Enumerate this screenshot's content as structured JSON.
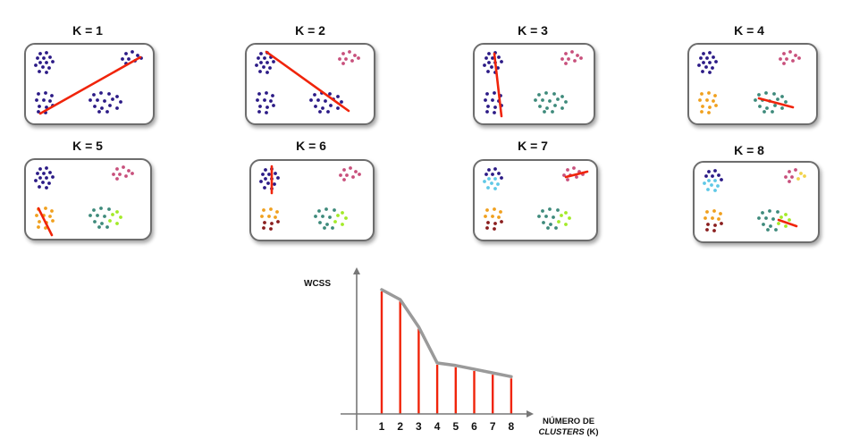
{
  "panels": [
    {
      "title": "K = 1"
    },
    {
      "title": "K = 2"
    },
    {
      "title": "K = 3"
    },
    {
      "title": "K = 4"
    },
    {
      "title": "K = 5"
    },
    {
      "title": "K = 6"
    },
    {
      "title": "K = 7"
    },
    {
      "title": "K = 8"
    }
  ],
  "colors": {
    "navy": "#2b1a86",
    "pink": "#c8507c",
    "teal": "#3e8a7b",
    "orange": "#f0a01e",
    "lime": "#a3ea28",
    "cyan": "#5fc8e6",
    "maroon": "#8a1e1e",
    "yellow": "#f2d24a",
    "red_line": "#f0240a",
    "curve": "#9a9a9a"
  },
  "chart_data": {
    "type": "line",
    "ylabel": "WCSS",
    "xlabel_line1": "NÚMERO DE",
    "xlabel_line2_italic": "CLUSTERS",
    "xlabel_line2_rest": " (K)",
    "x": [
      1,
      2,
      3,
      4,
      5,
      6,
      7,
      8
    ],
    "tick_labels": [
      "1",
      "2",
      "3",
      "4",
      "5",
      "6",
      "7",
      "8"
    ],
    "values": [
      100,
      92,
      70,
      41,
      39,
      36,
      33,
      30
    ],
    "ylim": [
      0,
      118
    ]
  }
}
